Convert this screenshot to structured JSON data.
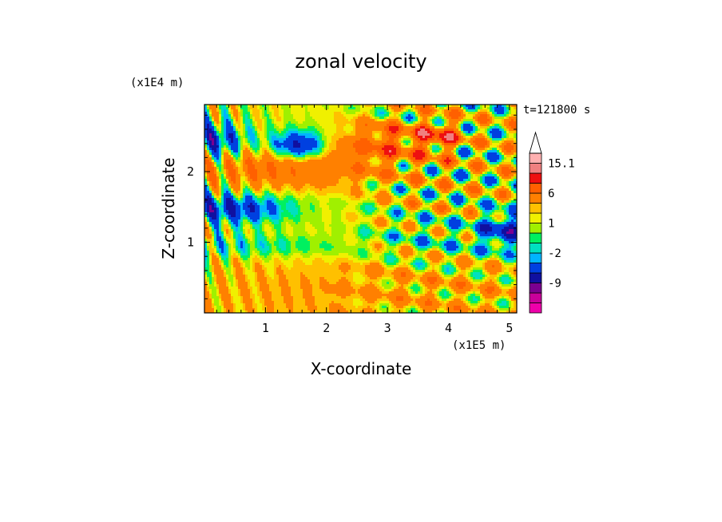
{
  "chart_data": {
    "type": "heatmap",
    "title": "zonal velocity",
    "xlabel": "X-coordinate",
    "ylabel": "Z-coordinate",
    "x_unit": "(x1E5 m)",
    "y_unit": "(x1E4 m)",
    "time_label": "t=121800 s",
    "xlim": [
      0,
      5.12
    ],
    "ylim": [
      0,
      2.95
    ],
    "x_ticks": [
      "1",
      "2",
      "3",
      "4",
      "5"
    ],
    "x_tick_values": [
      1,
      2,
      3,
      4,
      5
    ],
    "y_ticks": [
      "1",
      "2"
    ],
    "y_tick_values": [
      1,
      2
    ],
    "colorbar": {
      "labels": [
        "15.1",
        "6",
        "1",
        "-2",
        "-9"
      ],
      "label_values": [
        15.1,
        6,
        1,
        -2,
        -9
      ],
      "levels": [
        -15,
        -12,
        -9,
        -6,
        -3,
        -2,
        -1,
        0,
        1,
        2,
        3,
        6,
        9,
        12,
        15.1
      ],
      "colors": [
        "#ee00aa",
        "#c8009a",
        "#7a0090",
        "#1010a0",
        "#0040e0",
        "#00b4ff",
        "#00e0c0",
        "#00f060",
        "#a0f000",
        "#f0f000",
        "#ffc000",
        "#ff8000",
        "#ff6000",
        "#ee1010",
        "#f08080",
        "#ffb0b0"
      ],
      "extend": "max",
      "triangle_color": "#ffffff"
    },
    "grid": false
  }
}
